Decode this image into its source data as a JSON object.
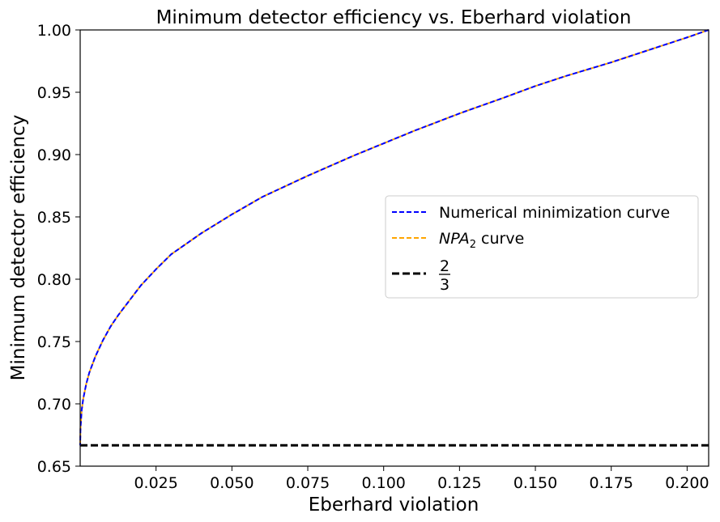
{
  "chart_data": {
    "type": "line",
    "title": "Minimum detector efficiency vs. Eberhard violation",
    "xlabel": "Eberhard violation",
    "ylabel": "Minimum detector efficiency",
    "xlim": [
      0.0,
      0.2071
    ],
    "ylim": [
      0.65,
      1.0
    ],
    "xticks": [
      0.025,
      0.05,
      0.075,
      0.1,
      0.125,
      0.15,
      0.175,
      0.2
    ],
    "xtick_labels": [
      "0.025",
      "0.050",
      "0.075",
      "0.100",
      "0.125",
      "0.150",
      "0.175",
      "0.200"
    ],
    "yticks": [
      0.65,
      0.7,
      0.75,
      0.8,
      0.85,
      0.9,
      0.95,
      1.0
    ],
    "ytick_labels": [
      "0.65",
      "0.70",
      "0.75",
      "0.80",
      "0.85",
      "0.90",
      "0.95",
      "1.00"
    ],
    "grid": false,
    "legend_position": "center-right",
    "x": [
      0.0,
      0.0001,
      0.0005,
      0.001,
      0.002,
      0.003,
      0.005,
      0.0075,
      0.01,
      0.0125,
      0.015,
      0.02,
      0.025,
      0.03,
      0.04,
      0.05,
      0.06,
      0.075,
      0.09,
      0.1,
      0.11,
      0.125,
      0.14,
      0.15,
      0.16,
      0.175,
      0.19,
      0.2,
      0.2071
    ],
    "series": [
      {
        "name": "Numerical minimization curve",
        "label_parts": [
          "Numerical minimization curve"
        ],
        "color": "#0000ff",
        "style": "dashed",
        "values": [
          0.6667,
          0.68,
          0.695,
          0.704,
          0.716,
          0.725,
          0.738,
          0.751,
          0.762,
          0.771,
          0.779,
          0.795,
          0.808,
          0.82,
          0.837,
          0.852,
          0.866,
          0.883,
          0.899,
          0.909,
          0.919,
          0.933,
          0.946,
          0.955,
          0.963,
          0.974,
          0.986,
          0.994,
          1.0
        ]
      },
      {
        "name": "NPA2 curve",
        "label_parts": [
          "NPA",
          "2",
          " curve"
        ],
        "color": "#ffa500",
        "style": "dashed",
        "values": [
          0.6667,
          0.68,
          0.695,
          0.704,
          0.716,
          0.725,
          0.738,
          0.751,
          0.762,
          0.771,
          0.779,
          0.795,
          0.808,
          0.82,
          0.837,
          0.852,
          0.866,
          0.883,
          0.899,
          0.909,
          0.919,
          0.933,
          0.946,
          0.955,
          0.963,
          0.974,
          0.986,
          0.994,
          1.0
        ]
      },
      {
        "name": "2/3",
        "label_parts": [
          "2",
          "3"
        ],
        "color": "#000000",
        "style": "dashed-thick",
        "hline": 0.6667
      }
    ]
  }
}
